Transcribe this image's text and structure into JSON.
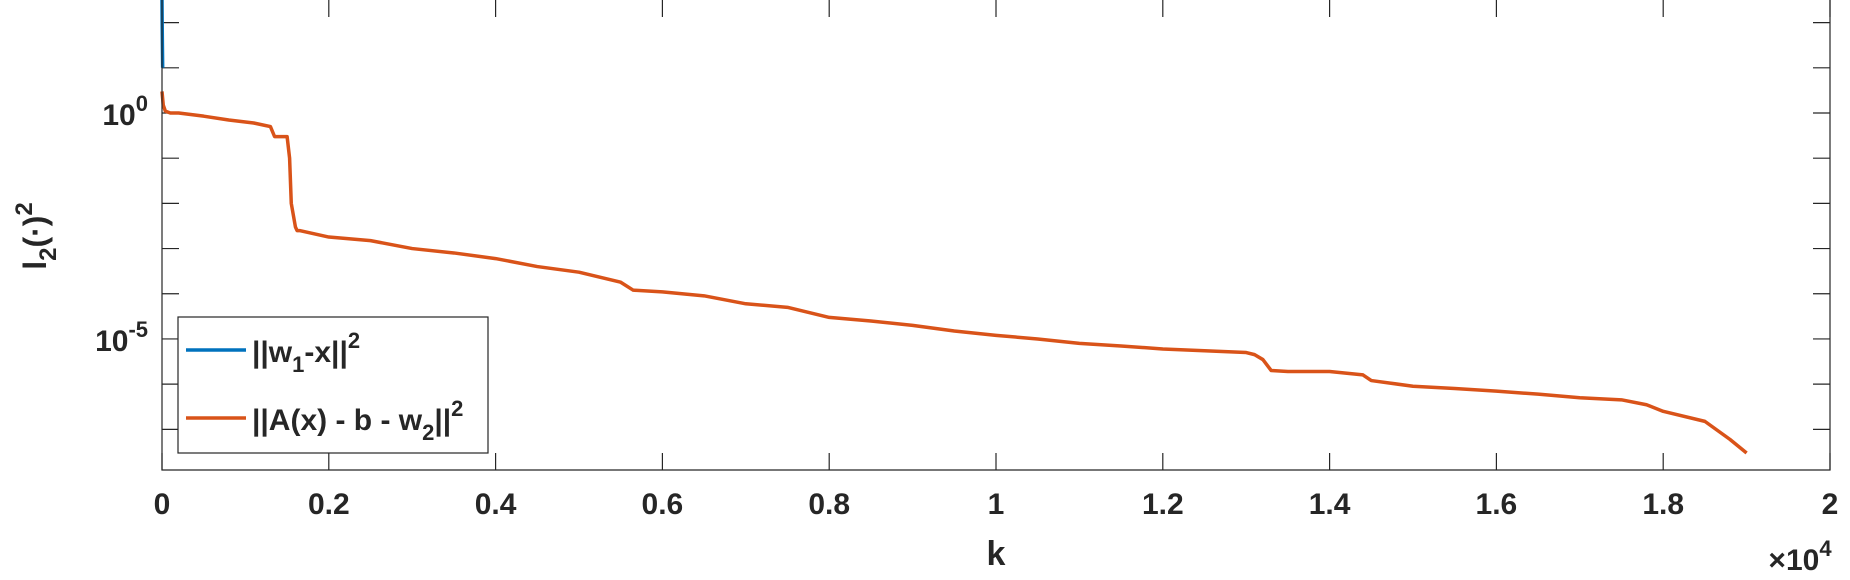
{
  "chart_data": {
    "type": "line",
    "title": "",
    "xlabel": "k",
    "ylabel": "l_2(·)^2",
    "x_multiplier_label": {
      "base": "×10",
      "exp": "4"
    },
    "xlim": [
      0,
      20000
    ],
    "ylim": [
      1.26e-08,
      316.2
    ],
    "yscale": "log",
    "x_ticks": [
      {
        "v": 0,
        "label": "0"
      },
      {
        "v": 2000,
        "label": "0.2"
      },
      {
        "v": 4000,
        "label": "0.4"
      },
      {
        "v": 6000,
        "label": "0.6"
      },
      {
        "v": 8000,
        "label": "0.8"
      },
      {
        "v": 10000,
        "label": "1"
      },
      {
        "v": 12000,
        "label": "1.2"
      },
      {
        "v": 14000,
        "label": "1.4"
      },
      {
        "v": 16000,
        "label": "1.6"
      },
      {
        "v": 18000,
        "label": "1.8"
      },
      {
        "v": 20000,
        "label": "2"
      }
    ],
    "y_ticks_labeled": [
      {
        "v": 1,
        "base": "10",
        "exp": "0"
      },
      {
        "v": 1e-05,
        "base": "10",
        "exp": "-5"
      }
    ],
    "y_ticks_minor": [
      1e-07,
      1e-06,
      0.0001,
      0.001,
      0.01,
      0.1,
      10,
      100
    ],
    "grid": false,
    "legend": {
      "placement": "bottom-left",
      "entries": [
        {
          "base": "||w",
          "sub": "1",
          "mid": "-x||",
          "sup": "2"
        },
        {
          "base": "||A(x) - b - w",
          "sub": "2",
          "mid": "||",
          "sup": "2"
        }
      ]
    },
    "series": [
      {
        "name": "||w_1-x||^2",
        "color": "#0072BD",
        "x": [
          0,
          2,
          5,
          8
        ],
        "y": [
          316.2,
          100,
          30,
          10
        ]
      },
      {
        "name": "||A(x) - b - w_2||^2",
        "color": "#D95319",
        "x": [
          0,
          15,
          40,
          100,
          200,
          500,
          800,
          1100,
          1300,
          1350,
          1500,
          1530,
          1550,
          1600,
          1620,
          1650,
          2000,
          2500,
          3000,
          3500,
          4000,
          4500,
          5000,
          5500,
          5650,
          6000,
          6500,
          7000,
          7500,
          8000,
          8500,
          9000,
          9500,
          10000,
          10500,
          11000,
          11500,
          12000,
          12500,
          13000,
          13100,
          13200,
          13300,
          13500,
          14000,
          14400,
          14500,
          15000,
          15500,
          16000,
          16500,
          17000,
          17500,
          17800,
          18000,
          18500,
          18800,
          19000
        ],
        "y": [
          3,
          1.5,
          1.1,
          1.0,
          1.0,
          0.85,
          0.7,
          0.6,
          0.5,
          0.3,
          0.3,
          0.1,
          0.01,
          0.003,
          0.0025,
          0.0025,
          0.0018,
          0.0015,
          0.001,
          0.0008,
          0.0006,
          0.0004,
          0.0003,
          0.00018,
          0.00012,
          0.00011,
          9e-05,
          6e-05,
          5e-05,
          3e-05,
          2.5e-05,
          2e-05,
          1.5e-05,
          1.2e-05,
          1e-05,
          8e-06,
          7e-06,
          6e-06,
          5.5e-06,
          5e-06,
          4.5e-06,
          3.5e-06,
          2e-06,
          1.9e-06,
          1.9e-06,
          1.6e-06,
          1.2e-06,
          9e-07,
          8e-07,
          7e-07,
          6e-07,
          5e-07,
          4.5e-07,
          3.5e-07,
          2.5e-07,
          1.5e-07,
          6e-08,
          3e-08
        ]
      }
    ]
  }
}
